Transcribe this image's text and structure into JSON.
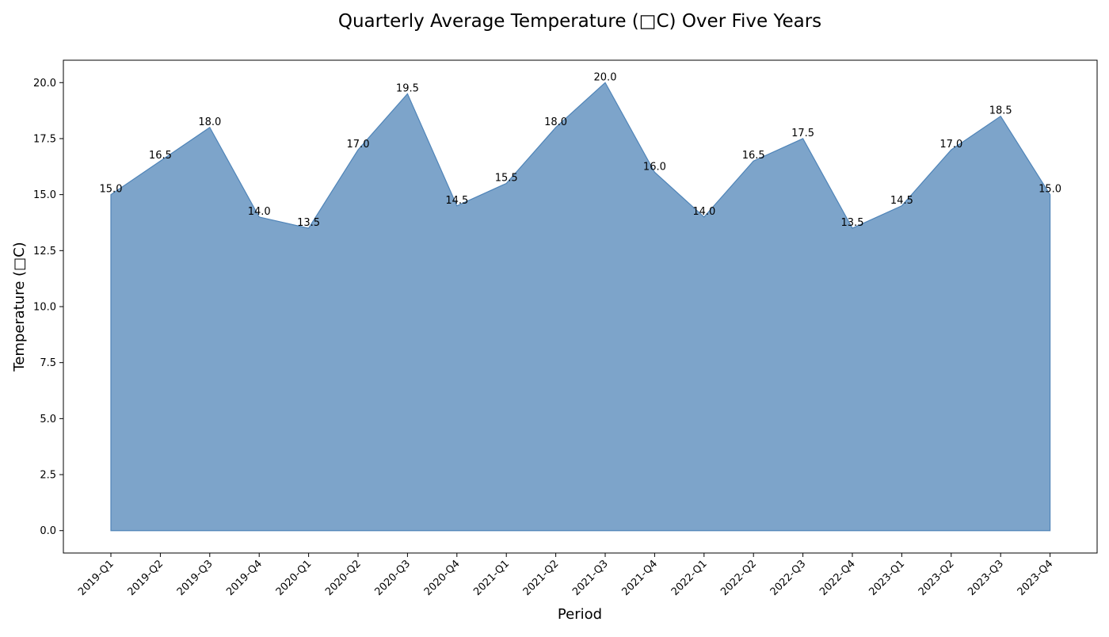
{
  "chart_data": {
    "type": "area",
    "title": "Quarterly Average Temperature (□C) Over Five Years",
    "xlabel": "Period",
    "ylabel": "Temperature (□C)",
    "categories": [
      "2019-Q1",
      "2019-Q2",
      "2019-Q3",
      "2019-Q4",
      "2020-Q1",
      "2020-Q2",
      "2020-Q3",
      "2020-Q4",
      "2021-Q1",
      "2021-Q2",
      "2021-Q3",
      "2021-Q4",
      "2022-Q1",
      "2022-Q2",
      "2022-Q3",
      "2022-Q4",
      "2023-Q1",
      "2023-Q2",
      "2023-Q3",
      "2023-Q4"
    ],
    "series": [
      {
        "values": [
          15.0,
          16.5,
          18.0,
          14.0,
          13.5,
          17.0,
          19.5,
          14.5,
          15.5,
          18.0,
          20.0,
          16.0,
          14.0,
          16.5,
          17.5,
          13.5,
          14.5,
          17.0,
          18.5,
          15.0
        ],
        "data_labels": [
          "15.0",
          "16.5",
          "18.0",
          "14.0",
          "13.5",
          "17.0",
          "19.5",
          "14.5",
          "15.5",
          "18.0",
          "20.0",
          "16.0",
          "14.0",
          "16.5",
          "17.5",
          "13.5",
          "14.5",
          "17.0",
          "18.5",
          "15.0"
        ]
      }
    ],
    "yticks": [
      "0.0",
      "2.5",
      "5.0",
      "7.5",
      "10.0",
      "12.5",
      "15.0",
      "17.5",
      "20.0"
    ],
    "ylim": [
      -1,
      21
    ],
    "grid": false,
    "legend": false,
    "colors": {
      "fill": "#4f84b8",
      "stroke": "#4f84b8"
    }
  }
}
